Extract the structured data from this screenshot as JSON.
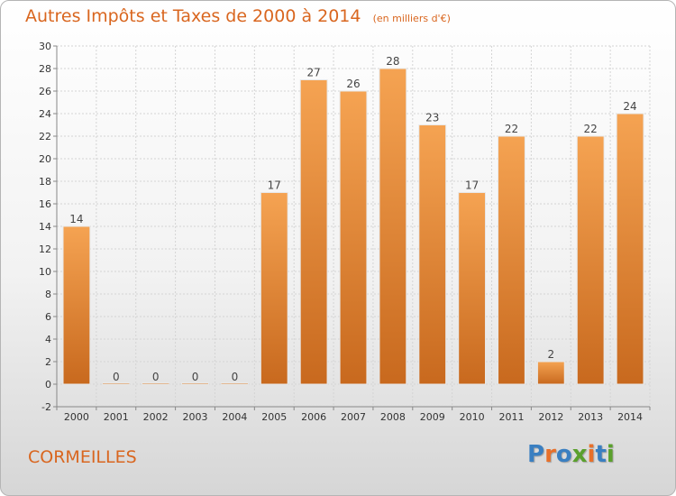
{
  "header": {
    "title": "Autres Impôts et Taxes de 2000 à 2014",
    "subtitle": "(en milliers d'€)"
  },
  "footer": {
    "place": "CORMEILLES",
    "logo": "Proxiti",
    "logo_colors": [
      "#3a7fc1",
      "#e8702a",
      "#3a7fc1",
      "#5aa02c",
      "#e8702a",
      "#3a7fc1",
      "#5aa02c"
    ]
  },
  "chart_data": {
    "type": "bar",
    "title": "Autres Impôts et Taxes de 2000 à 2014",
    "subtitle": "(en milliers d'€)",
    "categories": [
      "2000",
      "2001",
      "2002",
      "2003",
      "2004",
      "2005",
      "2006",
      "2007",
      "2008",
      "2009",
      "2010",
      "2011",
      "2012",
      "2013",
      "2014"
    ],
    "values": [
      14,
      0,
      0,
      0,
      0,
      17,
      27,
      26,
      28,
      23,
      17,
      22,
      2,
      22,
      24
    ],
    "ylim": [
      -2,
      30
    ],
    "yticks": [
      -2,
      0,
      2,
      4,
      6,
      8,
      10,
      12,
      14,
      16,
      18,
      20,
      22,
      24,
      26,
      28,
      30
    ],
    "grid": true,
    "bar_color_light": "#f5a352",
    "bar_color_dark": "#c8691e",
    "xlabel": "",
    "ylabel": ""
  }
}
